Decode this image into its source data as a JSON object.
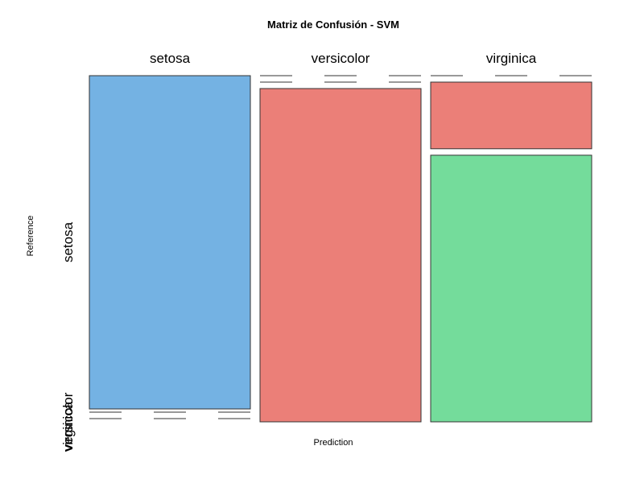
{
  "chart_data": {
    "type": "mosaic",
    "title": "Matriz de Confusión - SVM",
    "xlabel": "Prediction",
    "ylabel": "Reference",
    "prediction_levels": [
      "setosa",
      "versicolor",
      "virginica"
    ],
    "reference_levels": [
      "setosa",
      "versicolor",
      "virginica"
    ],
    "matrix": [
      {
        "prediction": "setosa",
        "counts": {
          "setosa": 10,
          "versicolor": 0,
          "virginica": 0
        }
      },
      {
        "prediction": "versicolor",
        "counts": {
          "setosa": 0,
          "versicolor": 0,
          "virginica": 9
        }
      },
      {
        "prediction": "virginica",
        "counts": {
          "setosa": 0,
          "versicolor": 2,
          "virginica": 8
        }
      }
    ],
    "colors": {
      "correct_setosa": "#74b2e3",
      "correct_other": "#74dc9b",
      "misclassified": "#eb7f78",
      "border": "#333333"
    }
  }
}
